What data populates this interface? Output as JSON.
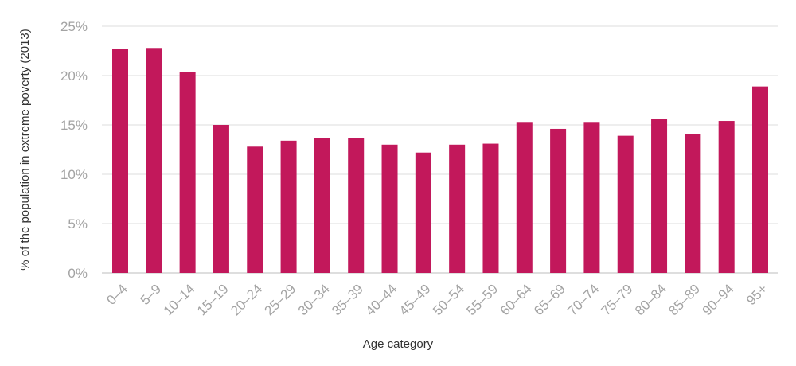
{
  "chart_data": {
    "type": "bar",
    "title": "",
    "xlabel": "Age category",
    "ylabel": "% of the population in extreme poverty (2013)",
    "categories": [
      "0–4",
      "5–9",
      "10–14",
      "15–19",
      "20–24",
      "25–29",
      "30–34",
      "35–39",
      "40–44",
      "45–49",
      "50–54",
      "55–59",
      "60–64",
      "65–69",
      "70–74",
      "75–79",
      "80–84",
      "85–89",
      "90–94",
      "95+"
    ],
    "values": [
      22.7,
      22.8,
      20.4,
      15.0,
      12.8,
      13.4,
      13.7,
      13.7,
      13.0,
      12.2,
      13.0,
      13.1,
      15.3,
      14.6,
      15.3,
      13.9,
      15.6,
      14.1,
      15.4,
      18.9
    ],
    "ylim": [
      0,
      25
    ],
    "yticks": [
      0,
      5,
      10,
      15,
      20,
      25
    ],
    "ytick_labels": [
      "0%",
      "5%",
      "10%",
      "15%",
      "20%",
      "25%"
    ],
    "grid": true,
    "bar_color": "#c2185b",
    "grid_color": "#dcdcdc"
  }
}
